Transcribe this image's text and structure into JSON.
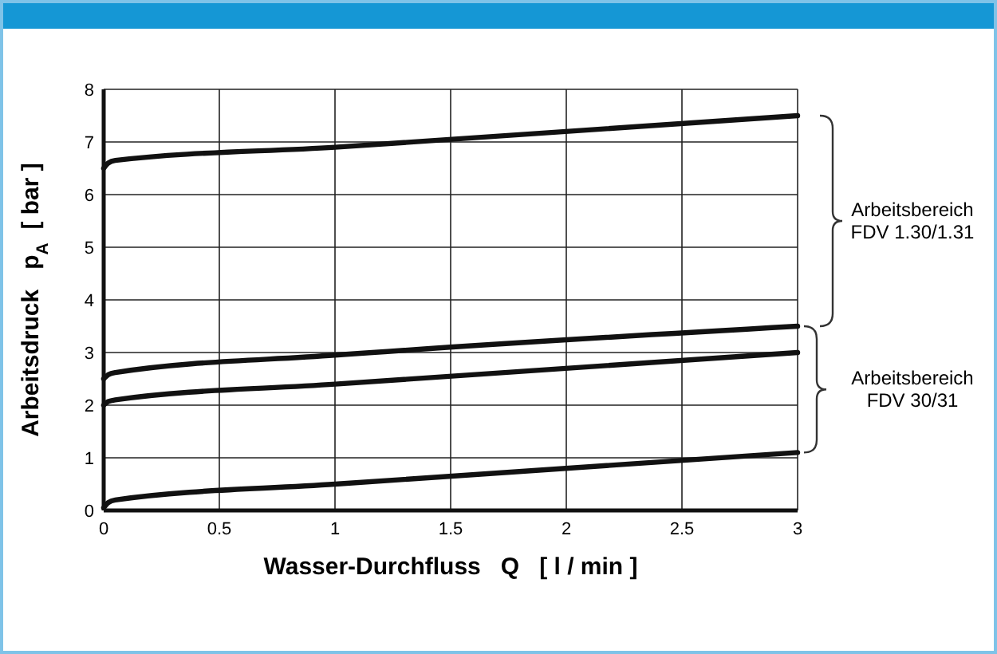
{
  "chart_data": {
    "type": "line",
    "xlabel": "Wasser-Durchfluss   Q   [ l / min ]",
    "ylabel": "Arbeitsdruck   p$_{A}$  [ bar ]",
    "xlim": [
      0,
      3
    ],
    "xticks": [
      0,
      0.5,
      1,
      1.5,
      2,
      2.5,
      3
    ],
    "ylim": [
      0,
      8
    ],
    "yticks": [
      0,
      1,
      2,
      3,
      4,
      5,
      6,
      7,
      8
    ],
    "grid": true,
    "marker": "none",
    "line_style": "solid",
    "series": [
      {
        "color": "#111111",
        "x": [
          0,
          0.02,
          0.05,
          1,
          3
        ],
        "values": [
          6.5,
          6.6,
          6.65,
          6.9,
          7.5
        ]
      },
      {
        "color": "#111111",
        "x": [
          0,
          0.02,
          0.05,
          1,
          3
        ],
        "values": [
          2.5,
          2.58,
          2.62,
          2.95,
          3.5
        ]
      },
      {
        "color": "#111111",
        "x": [
          0,
          0.02,
          0.05,
          1,
          3
        ],
        "values": [
          2.0,
          2.07,
          2.1,
          2.4,
          3.0
        ]
      },
      {
        "color": "#111111",
        "x": [
          0,
          0.02,
          0.05,
          1,
          3
        ],
        "values": [
          0.05,
          0.15,
          0.2,
          0.5,
          1.1
        ]
      }
    ],
    "annotations": [
      "Arbeitsbereich\nFDV 1.30/1.31",
      "Arbeitsbereich\nFDV 30/31"
    ]
  }
}
